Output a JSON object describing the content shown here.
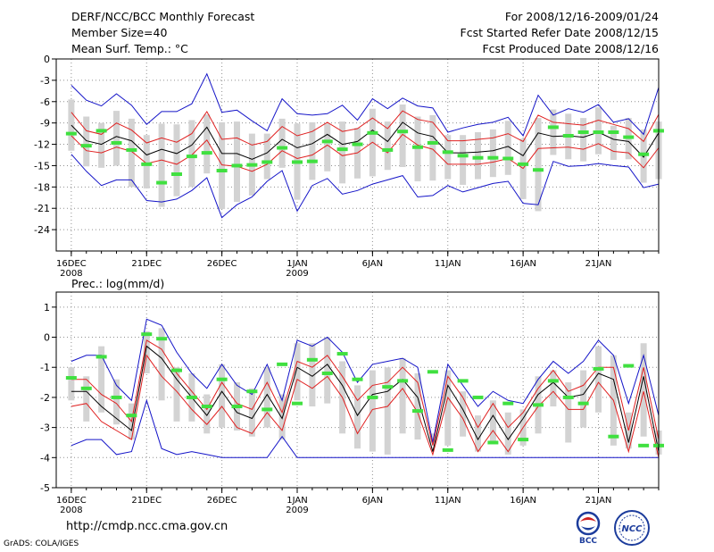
{
  "header": {
    "title": "DERF/NCC/BCC Monthly Forecast",
    "member_size": "Member Size=40",
    "period": "For 2008/12/16-2009/01/24",
    "started": "Fcst Started Refer Date 2008/12/15",
    "produced": "Fcst Produced Date 2008/12/16"
  },
  "footer": {
    "url": "http://cmdp.ncc.cma.gov.cn",
    "grads": "GrADS: COLA/IGES",
    "logo_bcc": "BCC",
    "logo_ncc": "NCC"
  },
  "colors": {
    "ens_mean": "#000000",
    "spread": "#e02020",
    "extreme": "#1414c8",
    "bar": "#d3d3d3",
    "obs": "#40e040"
  },
  "chart_data": [
    {
      "type": "line",
      "title": "Mean Surf. Temp.: °C",
      "ylim": [
        -27,
        0
      ],
      "yticks": [
        0,
        -3,
        -6,
        -9,
        -12,
        -15,
        -18,
        -21,
        -24
      ],
      "xlim": [
        0,
        40
      ],
      "xticks": [
        {
          "x": 1,
          "label": "16DEC",
          "sub": "2008"
        },
        {
          "x": 6,
          "label": "21DEC",
          "sub": ""
        },
        {
          "x": 11,
          "label": "26DEC",
          "sub": ""
        },
        {
          "x": 16,
          "label": "1JAN",
          "sub": "2009"
        },
        {
          "x": 21,
          "label": "6JAN",
          "sub": ""
        },
        {
          "x": 26,
          "label": "11JAN",
          "sub": ""
        },
        {
          "x": 31,
          "label": "16JAN",
          "sub": ""
        },
        {
          "x": 36,
          "label": "21JAN",
          "sub": ""
        }
      ],
      "x": [
        1,
        2,
        3,
        4,
        5,
        6,
        7,
        8,
        9,
        10,
        11,
        12,
        13,
        14,
        15,
        16,
        17,
        18,
        19,
        20,
        21,
        22,
        23,
        24,
        25,
        26,
        27,
        28,
        29,
        30,
        31,
        32,
        33,
        34,
        35,
        36,
        37,
        38,
        39,
        40
      ],
      "series": [
        {
          "name": "max",
          "values": [
            -3.7,
            -5.8,
            -6.6,
            -4.9,
            -6.5,
            -9.2,
            -7.4,
            -7.4,
            -6.3,
            -2.1,
            -7.5,
            -7.2,
            -8.7,
            -10.1,
            -5.6,
            -7.7,
            -7.9,
            -7.7,
            -6.5,
            -8.6,
            -5.6,
            -7.0,
            -5.5,
            -6.6,
            -6.9,
            -10.3,
            -9.7,
            -9.2,
            -8.9,
            -8.2,
            -10.8,
            -5.1,
            -7.9,
            -7.0,
            -7.5,
            -6.4,
            -8.9,
            -8.4,
            -10.6,
            -4.0
          ]
        },
        {
          "name": "mean_plus",
          "values": [
            -7.5,
            -10.1,
            -10.6,
            -9.0,
            -10.0,
            -11.8,
            -11.1,
            -11.7,
            -10.5,
            -7.4,
            -11.3,
            -11.1,
            -12.1,
            -11.6,
            -9.5,
            -10.8,
            -10.2,
            -8.9,
            -10.2,
            -9.8,
            -8.3,
            -9.8,
            -7.3,
            -8.5,
            -8.9,
            -11.5,
            -11.5,
            -11.3,
            -11.1,
            -10.5,
            -11.6,
            -7.9,
            -8.9,
            -9.1,
            -9.3,
            -8.6,
            -9.2,
            -9.8,
            -11.6,
            -7.8
          ]
        },
        {
          "name": "mean",
          "values": [
            -9.3,
            -11.5,
            -12.0,
            -10.9,
            -11.5,
            -13.5,
            -12.7,
            -13.3,
            -12.1,
            -9.6,
            -13.3,
            -13.3,
            -14.1,
            -13.2,
            -11.3,
            -12.5,
            -11.9,
            -10.6,
            -12.0,
            -11.6,
            -10.0,
            -11.6,
            -8.9,
            -10.4,
            -10.9,
            -13.2,
            -13.2,
            -13.1,
            -12.9,
            -12.3,
            -13.6,
            -10.4,
            -10.9,
            -10.8,
            -11.0,
            -10.3,
            -11.3,
            -11.6,
            -13.8,
            -10.4
          ]
        },
        {
          "name": "mean_minus",
          "values": [
            -10.8,
            -12.9,
            -13.2,
            -12.4,
            -13.0,
            -14.7,
            -14.2,
            -14.8,
            -13.5,
            -11.4,
            -14.9,
            -15.1,
            -15.8,
            -14.8,
            -12.9,
            -14.0,
            -13.5,
            -12.1,
            -13.6,
            -13.2,
            -11.7,
            -13.2,
            -10.6,
            -12.1,
            -12.7,
            -14.8,
            -14.8,
            -14.8,
            -14.5,
            -14.0,
            -15.4,
            -12.6,
            -12.5,
            -12.4,
            -12.7,
            -11.9,
            -13.0,
            -13.2,
            -15.3,
            -12.5
          ]
        },
        {
          "name": "min",
          "values": [
            -13.4,
            -15.8,
            -17.8,
            -17.0,
            -17.0,
            -19.9,
            -20.1,
            -19.7,
            -18.5,
            -16.7,
            -22.3,
            -20.5,
            -19.4,
            -17.2,
            -15.7,
            -21.4,
            -17.8,
            -16.8,
            -19.0,
            -18.5,
            -17.6,
            -17.0,
            -16.4,
            -19.4,
            -19.2,
            -17.8,
            -18.7,
            -18.1,
            -17.5,
            -17.2,
            -20.3,
            -20.5,
            -14.4,
            -15.1,
            -15.0,
            -14.7,
            -15.0,
            -15.2,
            -18.1,
            -17.6
          ]
        },
        {
          "name": "obs",
          "values": [
            -10.5,
            -12.2,
            -10.1,
            -11.8,
            -12.8,
            -14.8,
            -17.4,
            -16.2,
            -13.7,
            -13.2,
            -15.7,
            -15.0,
            -14.9,
            -14.5,
            -12.5,
            -14.5,
            -14.4,
            -11.6,
            -12.7,
            -12.0,
            -10.4,
            -12.8,
            -10.2,
            -12.4,
            -11.8,
            -13.1,
            -13.6,
            -13.9,
            -13.9,
            -14.0,
            -14.8,
            -15.6,
            -9.6,
            -10.8,
            -10.3,
            -10.3,
            -10.3,
            -11.0,
            -13.4,
            -10.1
          ]
        },
        {
          "name": "bar_top",
          "values": [
            -5.7,
            -8.1,
            -9.0,
            -7.3,
            -8.4,
            -10.7,
            -9.1,
            -9.2,
            -8.6,
            -7.8,
            -8.9,
            -8.8,
            -10.5,
            -10.5,
            -8.4,
            -9.1,
            -8.9,
            -9.1,
            -8.8,
            -9.7,
            -7.0,
            -8.8,
            -6.4,
            -8.1,
            -7.9,
            -10.7,
            -10.7,
            -10.3,
            -9.9,
            -8.7,
            -11.2,
            -8.3,
            -7.1,
            -7.7,
            -8.3,
            -6.8,
            -9.4,
            -8.3,
            -9.9,
            -8.8
          ]
        },
        {
          "name": "bar_bottom",
          "values": [
            -12.9,
            -15.1,
            -15.3,
            -15.0,
            -18.0,
            -18.2,
            -20.8,
            -19.3,
            -18.0,
            -16.1,
            -21.1,
            -20.1,
            -19.2,
            -16.9,
            -15.3,
            -19.8,
            -17.0,
            -15.8,
            -17.5,
            -16.8,
            -16.5,
            -15.6,
            -15.2,
            -17.2,
            -17.1,
            -16.9,
            -17.7,
            -16.9,
            -16.6,
            -16.3,
            -19.7,
            -21.4,
            -13.5,
            -14.1,
            -14.4,
            -13.4,
            -14.2,
            -14.1,
            -17.4,
            -16.9
          ]
        }
      ]
    },
    {
      "type": "line",
      "title": "Prec.: log(mm/d)",
      "ylim": [
        -5,
        1.5
      ],
      "yticks": [
        1,
        0,
        -1,
        -2,
        -3,
        -4,
        -5
      ],
      "xlim": [
        0,
        40
      ],
      "xticks": [
        {
          "x": 1,
          "label": "16DEC",
          "sub": "2008"
        },
        {
          "x": 6,
          "label": "21DEC",
          "sub": ""
        },
        {
          "x": 11,
          "label": "26DEC",
          "sub": ""
        },
        {
          "x": 16,
          "label": "1JAN",
          "sub": "2009"
        },
        {
          "x": 21,
          "label": "6JAN",
          "sub": ""
        },
        {
          "x": 26,
          "label": "11JAN",
          "sub": ""
        },
        {
          "x": 31,
          "label": "16JAN",
          "sub": ""
        },
        {
          "x": 36,
          "label": "21JAN",
          "sub": ""
        }
      ],
      "x": [
        1,
        2,
        3,
        4,
        5,
        6,
        7,
        8,
        9,
        10,
        11,
        12,
        13,
        14,
        15,
        16,
        17,
        18,
        19,
        20,
        21,
        22,
        23,
        24,
        25,
        26,
        27,
        28,
        29,
        30,
        31,
        32,
        33,
        34,
        35,
        36,
        37,
        38,
        39,
        40
      ],
      "series": [
        {
          "name": "max",
          "values": [
            -0.8,
            -0.6,
            -0.6,
            -1.6,
            -2.1,
            0.6,
            0.4,
            -0.5,
            -1.2,
            -1.7,
            -0.9,
            -1.6,
            -1.9,
            -0.9,
            -2.1,
            -0.1,
            -0.3,
            0.0,
            -0.5,
            -1.5,
            -0.9,
            -0.8,
            -0.7,
            -1.0,
            -3.5,
            -0.9,
            -1.6,
            -2.3,
            -1.8,
            -2.1,
            -2.2,
            -1.4,
            -0.8,
            -1.2,
            -0.8,
            -0.1,
            -0.6,
            -2.2,
            -0.6,
            -2.6
          ]
        },
        {
          "name": "mean_plus",
          "values": [
            -1.4,
            -1.4,
            -1.9,
            -2.2,
            -2.8,
            -0.1,
            -0.4,
            -1.2,
            -1.8,
            -2.4,
            -1.5,
            -2.2,
            -2.4,
            -1.5,
            -2.5,
            -0.8,
            -1.0,
            -0.6,
            -1.3,
            -2.1,
            -1.6,
            -1.5,
            -1.0,
            -1.5,
            -3.6,
            -1.3,
            -2.0,
            -3.0,
            -2.2,
            -3.0,
            -2.5,
            -1.7,
            -1.1,
            -1.8,
            -1.6,
            -1.0,
            -1.0,
            -3.1,
            -1.0,
            -3.4
          ]
        },
        {
          "name": "mean",
          "values": [
            -1.8,
            -1.8,
            -2.3,
            -2.7,
            -3.1,
            -0.3,
            -0.7,
            -1.4,
            -2.0,
            -2.6,
            -1.8,
            -2.5,
            -2.7,
            -1.9,
            -2.7,
            -1.0,
            -1.3,
            -0.9,
            -1.6,
            -2.6,
            -1.9,
            -1.8,
            -1.4,
            -2.0,
            -3.8,
            -1.6,
            -2.4,
            -3.4,
            -2.6,
            -3.4,
            -2.7,
            -1.9,
            -1.5,
            -2.0,
            -1.9,
            -1.2,
            -1.4,
            -3.5,
            -1.3,
            -3.8
          ]
        },
        {
          "name": "mean_minus",
          "values": [
            -2.3,
            -2.2,
            -2.8,
            -3.1,
            -3.4,
            -0.6,
            -1.3,
            -1.8,
            -2.4,
            -2.9,
            -2.3,
            -3.0,
            -3.2,
            -2.5,
            -3.1,
            -1.4,
            -1.7,
            -1.3,
            -2.0,
            -3.2,
            -2.4,
            -2.3,
            -1.7,
            -2.5,
            -3.9,
            -2.0,
            -2.7,
            -3.8,
            -3.1,
            -3.8,
            -3.0,
            -2.3,
            -1.8,
            -2.4,
            -2.4,
            -1.5,
            -2.1,
            -3.8,
            -1.8,
            -4.0
          ]
        },
        {
          "name": "min",
          "values": [
            -3.6,
            -3.4,
            -3.4,
            -3.9,
            -3.8,
            -2.1,
            -3.7,
            -3.9,
            -3.8,
            -3.9,
            -4.0,
            -4.0,
            -4.0,
            -4.0,
            -3.3,
            -4.0,
            -4.0,
            -4.0,
            -4.0,
            -4.0,
            -4.0,
            -4.0,
            -4.0,
            -4.0,
            -4.0,
            -4.0,
            -4.0,
            -4.0,
            -4.0,
            -4.0,
            -4.0,
            -4.0,
            -4.0,
            -4.0,
            -4.0,
            -4.0,
            -4.0,
            -4.0,
            -4.0,
            -4.0
          ]
        },
        {
          "name": "obs",
          "values": [
            -1.35,
            -1.7,
            -0.65,
            -2.0,
            -2.6,
            0.1,
            -0.05,
            -1.1,
            -2.0,
            -2.3,
            -1.4,
            -2.3,
            -1.8,
            -2.4,
            -0.9,
            -2.2,
            -0.75,
            -1.2,
            -0.55,
            -1.4,
            -2.0,
            -1.65,
            -1.45,
            -2.45,
            -1.15,
            -3.75,
            -1.45,
            -2.0,
            -3.5,
            -2.2,
            -3.4,
            -2.25,
            -1.45,
            -2.0,
            -2.2,
            -1.05,
            -3.3,
            -0.95,
            -3.6,
            -3.6
          ]
        },
        {
          "name": "bar_top",
          "values": [
            -1.0,
            -1.3,
            -0.3,
            -1.4,
            -2.2,
            0.2,
            0.3,
            -1.0,
            -1.2,
            -1.9,
            -0.9,
            -1.5,
            -1.7,
            -1.0,
            -1.9,
            -0.2,
            -0.2,
            0.0,
            -0.8,
            -1.6,
            -1.1,
            -1.0,
            -0.7,
            -1.2,
            -3.2,
            -1.1,
            -1.8,
            -2.6,
            -2.1,
            -2.5,
            -2.4,
            -1.3,
            -1.1,
            -1.5,
            -1.1,
            -0.3,
            -0.6,
            -2.5,
            -0.2,
            -3.1
          ]
        },
        {
          "name": "bar_bottom",
          "values": [
            -2.1,
            -2.8,
            -2.5,
            -2.9,
            -3.4,
            -1.2,
            -2.1,
            -2.8,
            -2.8,
            -3.2,
            -3.0,
            -3.1,
            -3.3,
            -3.0,
            -3.4,
            -2.1,
            -2.3,
            -2.2,
            -3.2,
            -3.7,
            -3.8,
            -3.9,
            -3.2,
            -3.4,
            -3.5,
            -3.6,
            -3.3,
            -3.8,
            -3.5,
            -3.9,
            -3.6,
            -3.2,
            -2.3,
            -3.5,
            -3.0,
            -2.5,
            -3.6,
            -3.7,
            -3.3,
            -3.9
          ]
        }
      ]
    }
  ]
}
